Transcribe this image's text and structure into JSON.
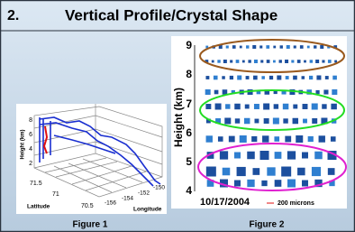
{
  "header": {
    "number": "2.",
    "title": "Vertical Profile/Crystal Shape"
  },
  "figure_1": {
    "y_label": "Height (km)",
    "y_ticks": [
      "8",
      "6",
      "4",
      "2"
    ],
    "latitude_label": "Latitude",
    "latitude_ticks": [
      "71.5",
      "71",
      "70.5"
    ],
    "longitude_label": "Longitude",
    "longitude_ticks": [
      "-156",
      "-154",
      "-152",
      "-150"
    ],
    "caption": "Figure 1"
  },
  "figure_2": {
    "y_label": "Height (km)",
    "y_ticks": [
      "9",
      "8",
      "7",
      "6",
      "5",
      "4"
    ],
    "date": "10/17/2004",
    "scale_label": "200 microns",
    "caption": "Figure 2"
  }
}
